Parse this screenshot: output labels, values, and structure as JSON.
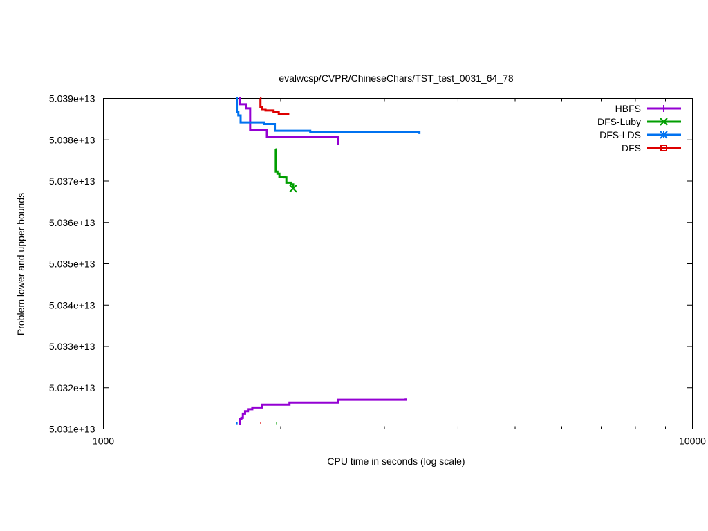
{
  "chart_data": {
    "type": "line",
    "title": "evalwcsp/CVPR/ChineseChars/TST_test_0031_64_78",
    "xlabel": "CPU time in seconds (log scale)",
    "ylabel": "Problem lower and upper bounds",
    "xscale": "log",
    "xlim": [
      1000,
      10000
    ],
    "ylim": [
      50310000000000,
      50390000000000
    ],
    "x_tick_labels": [
      {
        "value": 1000,
        "label": "1000"
      },
      {
        "value": 10000,
        "label": "10000"
      }
    ],
    "y_tick_labels": [
      {
        "value": 50310000000000,
        "label": "5.031e+13"
      },
      {
        "value": 50320000000000,
        "label": "5.032e+13"
      },
      {
        "value": 50330000000000,
        "label": "5.033e+13"
      },
      {
        "value": 50340000000000,
        "label": "5.034e+13"
      },
      {
        "value": 50350000000000,
        "label": "5.035e+13"
      },
      {
        "value": 50360000000000,
        "label": "5.036e+13"
      },
      {
        "value": 50370000000000,
        "label": "5.037e+13"
      },
      {
        "value": 50380000000000,
        "label": "5.038e+13"
      },
      {
        "value": 50390000000000,
        "label": "5.039e+13"
      }
    ],
    "grid": false,
    "legend_position": "top-right",
    "series": [
      {
        "name": "HBFS",
        "color": "#9400d3",
        "marker": "plus",
        "upper": [
          [
            1700,
            50390000000000
          ],
          [
            1705,
            50388600000000
          ],
          [
            1740,
            50388600000000
          ],
          [
            1745,
            50387600000000
          ],
          [
            1770,
            50387600000000
          ],
          [
            1775,
            50382300000000
          ],
          [
            1890,
            50382300000000
          ],
          [
            1895,
            50380700000000
          ],
          [
            2500,
            50380700000000
          ],
          [
            2500,
            50378800000000
          ]
        ],
        "lower": [
          [
            1700,
            50311200000000
          ],
          [
            1705,
            50312400000000
          ],
          [
            1715,
            50312700000000
          ],
          [
            1725,
            50313700000000
          ],
          [
            1740,
            50314300000000
          ],
          [
            1760,
            50314800000000
          ],
          [
            1790,
            50315200000000
          ],
          [
            1850,
            50315200000000
          ],
          [
            1860,
            50315900000000
          ],
          [
            2060,
            50315900000000
          ],
          [
            2070,
            50316400000000
          ],
          [
            2500,
            50316400000000
          ],
          [
            2505,
            50317100000000
          ],
          [
            3260,
            50317100000000
          ],
          [
            3260,
            50317400000000
          ]
        ]
      },
      {
        "name": "DFS-Luby",
        "color": "#009e00",
        "marker": "x",
        "upper": [
          [
            1960,
            50377700000000
          ],
          [
            1962,
            50372300000000
          ],
          [
            1975,
            50371800000000
          ],
          [
            1990,
            50371000000000
          ],
          [
            2030,
            50370900000000
          ],
          [
            2045,
            50369600000000
          ],
          [
            2080,
            50369200000000
          ],
          [
            2100,
            50368200000000
          ]
        ],
        "lower": [
          [
            1965,
            50311400000000
          ],
          [
            1968,
            50311400000000
          ]
        ]
      },
      {
        "name": "DFS-LDS",
        "color": "#0072f0",
        "marker": "asterisk",
        "upper": [
          [
            1680,
            50390000000000
          ],
          [
            1685,
            50386700000000
          ],
          [
            1695,
            50385900000000
          ],
          [
            1710,
            50384200000000
          ],
          [
            1870,
            50384200000000
          ],
          [
            1875,
            50383800000000
          ],
          [
            1950,
            50383800000000
          ],
          [
            1955,
            50382200000000
          ],
          [
            2240,
            50382200000000
          ],
          [
            2245,
            50381900000000
          ],
          [
            3440,
            50381900000000
          ],
          [
            3440,
            50381400000000
          ]
        ],
        "lower": [
          [
            1680,
            50311400000000
          ],
          [
            1690,
            50311400000000
          ]
        ]
      },
      {
        "name": "DFS",
        "color": "#dd0000",
        "marker": "square",
        "upper": [
          [
            1845,
            50390000000000
          ],
          [
            1848,
            50388000000000
          ],
          [
            1860,
            50387400000000
          ],
          [
            1880,
            50387400000000
          ],
          [
            1885,
            50387100000000
          ],
          [
            1940,
            50387100000000
          ],
          [
            1945,
            50386800000000
          ],
          [
            1980,
            50386800000000
          ],
          [
            1985,
            50386300000000
          ],
          [
            2060,
            50386300000000
          ],
          [
            2060,
            50386000000000
          ]
        ],
        "lower": [
          [
            1845,
            50311500000000
          ],
          [
            1848,
            50311500000000
          ]
        ]
      }
    ]
  }
}
